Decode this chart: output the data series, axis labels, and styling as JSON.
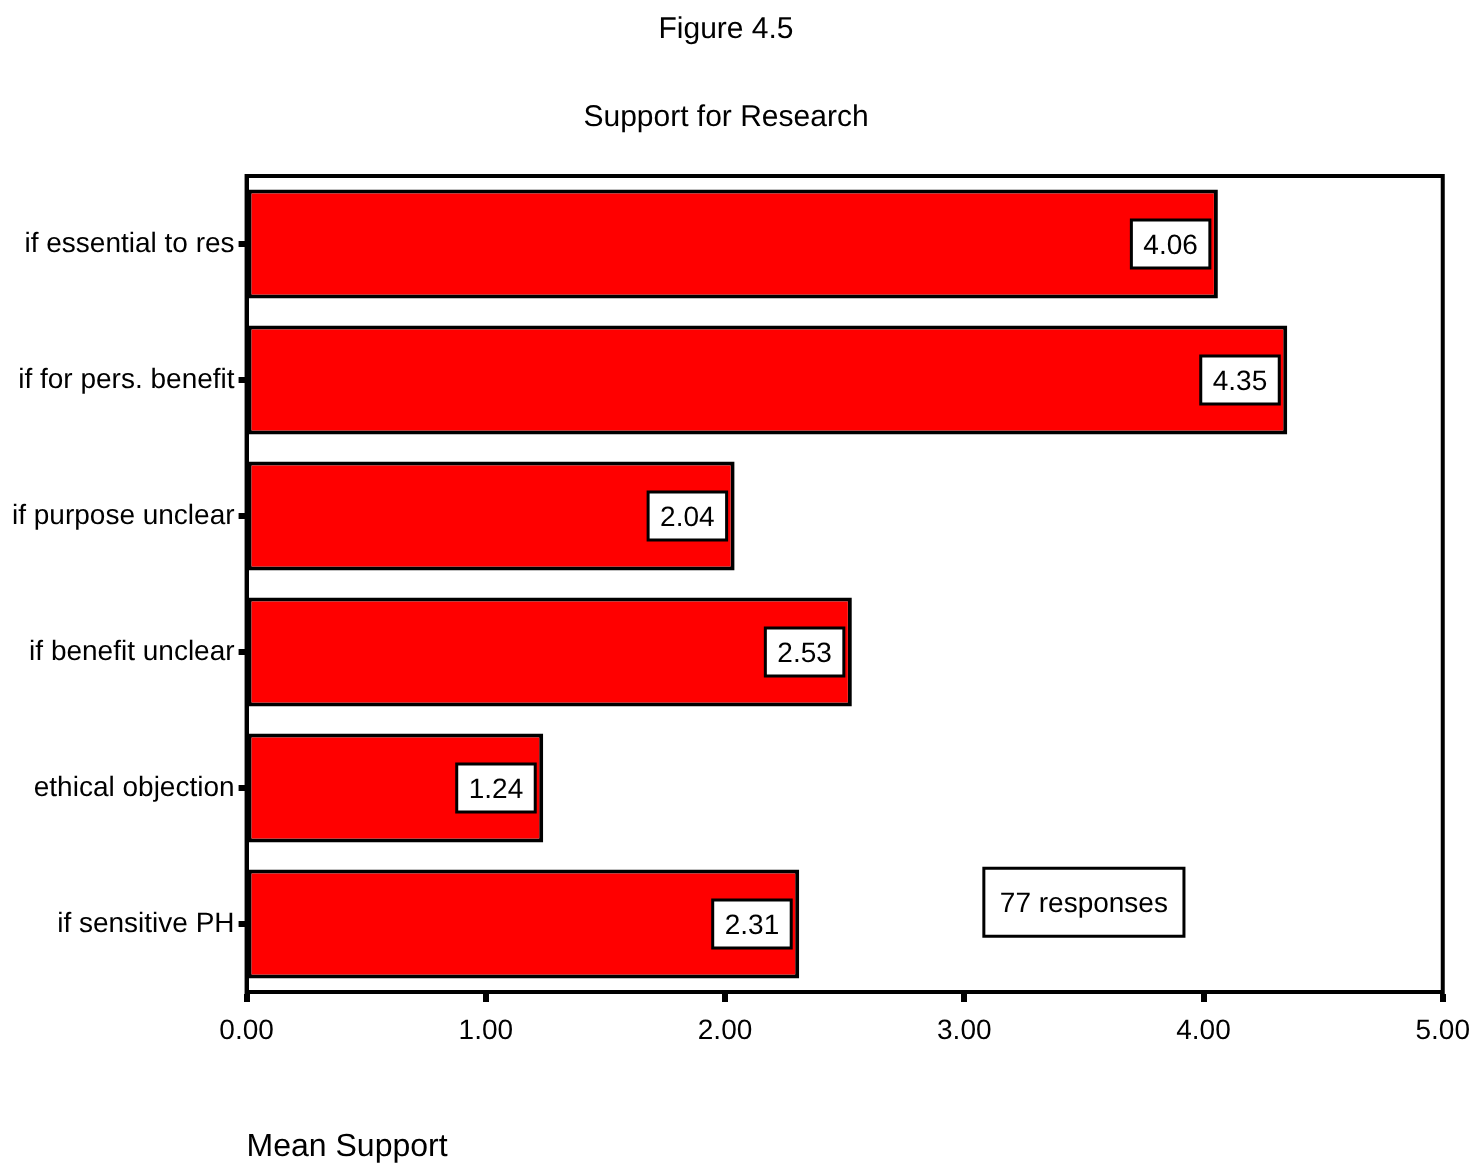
{
  "chart_data": {
    "type": "bar",
    "orientation": "horizontal",
    "title": "Figure 4.5",
    "subtitle": "Support for Research",
    "xlabel": "Mean Support",
    "categories": [
      "if essential to res",
      "if for pers. benefit",
      "if purpose unclear",
      "if benefit unclear",
      "ethical objection",
      "if sensitive PH"
    ],
    "values": [
      4.06,
      4.35,
      2.04,
      2.53,
      1.24,
      2.31
    ],
    "color": "#ff0000",
    "xlim": [
      0,
      5
    ],
    "xticks": [
      {
        "value": 0,
        "label": "0.00"
      },
      {
        "value": 1,
        "label": "1.00"
      },
      {
        "value": 2,
        "label": "2.00"
      },
      {
        "value": 3,
        "label": "3.00"
      },
      {
        "value": 4,
        "label": "4.00"
      },
      {
        "value": 5,
        "label": "5.00"
      }
    ],
    "data_labels": true,
    "annotations": [
      "77 responses"
    ],
    "grid": false,
    "legend": false
  }
}
